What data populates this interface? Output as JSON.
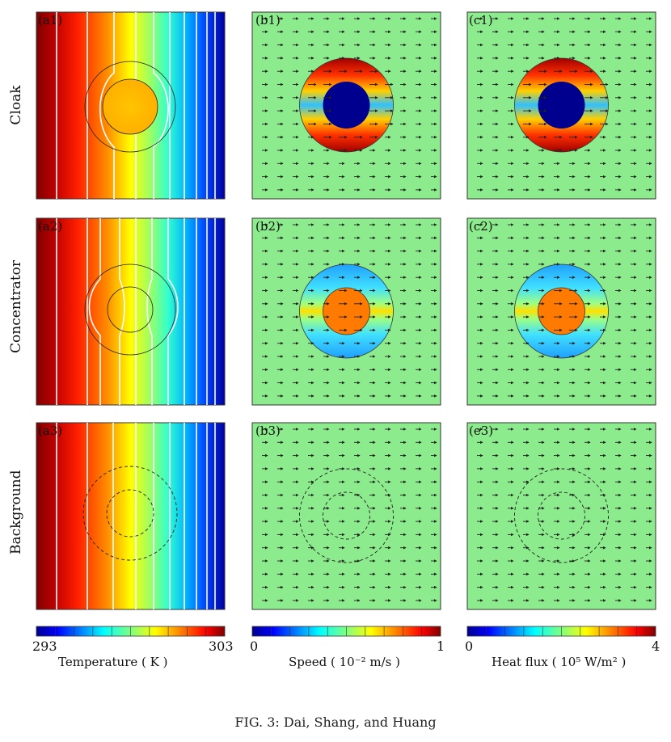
{
  "figure": {
    "caption": "FIG. 3: Dai, Shang, and Huang",
    "rows": [
      "Cloak",
      "Concentrator",
      "Background"
    ],
    "panel_labels": [
      [
        "(a1)",
        "(b1)",
        "(c1)"
      ],
      [
        "(a2)",
        "(b2)",
        "(c2)"
      ],
      [
        "(a3)",
        "(b3)",
        "(e3)"
      ]
    ]
  },
  "colorbars": [
    {
      "min_label": "293",
      "max_label": "303",
      "title": "Temperature ( K )"
    },
    {
      "min_label": "0",
      "max_label": "1",
      "title": "Speed ( 10⁻² m/s )"
    },
    {
      "min_label": "0",
      "max_label": "4",
      "title": "Heat flux ( 10⁵ W/m² )"
    }
  ],
  "colors": {
    "background_field": "#8ceb8c",
    "jet": [
      "#00008f",
      "#0000ff",
      "#00a0ff",
      "#00ffff",
      "#80ff80",
      "#ffff00",
      "#ff8000",
      "#ff0000",
      "#800000"
    ]
  },
  "chart_data": {
    "type": "heatmap",
    "title": "",
    "panels": [
      {
        "label": "(a1)",
        "quantity": "Temperature",
        "device": "Cloak",
        "range": [
          293,
          303
        ]
      },
      {
        "label": "(b1)",
        "quantity": "Speed",
        "device": "Cloak",
        "range": [
          0,
          1
        ]
      },
      {
        "label": "(c1)",
        "quantity": "Heat flux",
        "device": "Cloak",
        "range": [
          0,
          4
        ]
      },
      {
        "label": "(a2)",
        "quantity": "Temperature",
        "device": "Concentrator",
        "range": [
          293,
          303
        ]
      },
      {
        "label": "(b2)",
        "quantity": "Speed",
        "device": "Concentrator",
        "range": [
          0,
          1
        ]
      },
      {
        "label": "(c2)",
        "quantity": "Heat flux",
        "device": "Concentrator",
        "range": [
          0,
          4
        ]
      },
      {
        "label": "(a3)",
        "quantity": "Temperature",
        "device": "Background",
        "range": [
          293,
          303
        ]
      },
      {
        "label": "(b3)",
        "quantity": "Speed",
        "device": "Background",
        "range": [
          0,
          1
        ]
      },
      {
        "label": "(e3)",
        "quantity": "Heat flux",
        "device": "Background",
        "range": [
          0,
          4
        ]
      }
    ]
  }
}
